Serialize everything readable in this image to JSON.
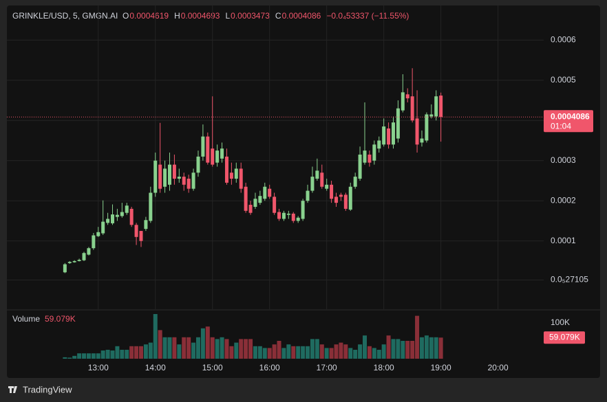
{
  "chart_data": {
    "type": "candlestick",
    "legend": {
      "symbol": "GRINKLE/USD, 5, GMGN.AI",
      "open_label": "O",
      "open": "0.0004619",
      "high_label": "H",
      "high": "0.0004693",
      "low_label": "L",
      "low": "0.0003473",
      "close_label": "C",
      "close": "0.0004086",
      "change": "−0.0₄53337 (−11.55%)"
    },
    "x": [
      "12:25",
      "12:30",
      "12:35",
      "12:40",
      "12:45",
      "12:50",
      "12:55",
      "13:00",
      "13:05",
      "13:10",
      "13:15",
      "13:20",
      "13:25",
      "13:30",
      "13:35",
      "13:40",
      "13:45",
      "13:50",
      "13:55",
      "14:00",
      "14:05",
      "14:10",
      "14:15",
      "14:20",
      "14:25",
      "14:30",
      "14:35",
      "14:40",
      "14:45",
      "14:50",
      "14:55",
      "15:00",
      "15:05",
      "15:10",
      "15:15",
      "15:20",
      "15:25",
      "15:30",
      "15:35",
      "15:40",
      "15:45",
      "15:50",
      "15:55",
      "16:00",
      "16:05",
      "16:10",
      "16:15",
      "16:20",
      "16:25",
      "16:30",
      "16:35",
      "16:40",
      "16:45",
      "16:50",
      "16:55",
      "17:00",
      "17:05",
      "17:10",
      "17:15",
      "17:20",
      "17:25",
      "17:30",
      "17:35",
      "17:40",
      "17:45",
      "17:50",
      "17:55",
      "18:00",
      "18:05",
      "18:10",
      "18:15",
      "18:20",
      "18:25",
      "18:30",
      "18:35",
      "18:40",
      "18:45",
      "18:50",
      "18:55",
      "19:00"
    ],
    "open": [
      2.2e-05,
      4.5e-05,
      4.7e-05,
      5e-05,
      5.2e-05,
      6.6e-05,
      8.2e-05,
      0.000112,
      0.000119,
      0.000145,
      0.000144,
      0.00016,
      0.000162,
      0.00017,
      0.00018,
      0.00014,
      0.000125,
      0.00013,
      0.00015,
      0.00022,
      0.00029,
      0.000235,
      0.00024,
      0.00029,
      0.000255,
      0.00026,
      0.000255,
      0.00023,
      0.00027,
      0.00031,
      0.00036,
      0.00033,
      0.000295,
      0.000305,
      0.00031,
      0.00027,
      0.000255,
      0.00028,
      0.000235,
      0.00019,
      0.000185,
      0.000195,
      0.000205,
      0.00023,
      0.00021,
      0.000172,
      0.000155,
      0.000165,
      0.000168,
      0.00015,
      0.000155,
      0.0002,
      0.000225,
      0.000255,
      0.00027,
      0.00023,
      0.00024,
      0.00021,
      0.000215,
      0.000215,
      0.000178,
      0.000235,
      0.000255,
      0.000295,
      0.000315,
      0.0003,
      0.00033,
      0.00034,
      0.00038,
      0.00034,
      0.000355,
      0.000425,
      0.000465,
      0.00046,
      0.000405,
      0.000345,
      0.00035,
      0.00041,
      0.00041,
      0.0004619
    ],
    "high": [
      4.5e-05,
      5e-05,
      5.2e-05,
      5.6e-05,
      7.3e-05,
      8.5e-05,
      0.00012,
      0.000135,
      0.000201,
      0.00017,
      0.000191,
      0.00018,
      0.000195,
      0.000195,
      0.000185,
      0.000145,
      0.000125,
      0.00016,
      0.000235,
      0.00032,
      0.000394,
      0.0003,
      0.00032,
      0.000315,
      0.00028,
      0.00027,
      0.000265,
      0.00028,
      0.000325,
      0.00039,
      0.00037,
      0.00046,
      0.00034,
      0.000345,
      0.00033,
      0.000295,
      0.000295,
      0.000295,
      0.000245,
      0.0002,
      0.00022,
      0.000225,
      0.000245,
      0.00024,
      0.00022,
      0.00018,
      0.000175,
      0.000175,
      0.000172,
      0.000162,
      0.000205,
      0.00024,
      0.000285,
      0.000305,
      0.00029,
      0.000255,
      0.00025,
      0.00022,
      0.00022,
      0.00022,
      0.000245,
      0.00027,
      0.000335,
      0.000445,
      0.000325,
      0.00035,
      0.00036,
      0.000405,
      0.000395,
      0.00041,
      0.00045,
      0.000515,
      0.00048,
      0.00053,
      0.000475,
      0.000375,
      0.00042,
      0.00044,
      0.000475,
      0.0004693
    ],
    "low": [
      2e-05,
      4.3e-05,
      4.6e-05,
      4.9e-05,
      5e-05,
      6.4e-05,
      7.8e-05,
      0.00011,
      0.000115,
      0.00014,
      0.00014,
      0.00015,
      0.000158,
      0.000165,
      0.000135,
      9e-05,
      8.5e-05,
      0.000125,
      0.000145,
      0.00021,
      0.00022,
      0.00022,
      0.000225,
      0.00024,
      0.000245,
      0.000225,
      0.00022,
      0.000225,
      0.00026,
      0.0003,
      0.00029,
      0.000285,
      0.000285,
      0.000295,
      0.00024,
      0.00024,
      0.000245,
      0.00022,
      0.00017,
      0.000165,
      0.00018,
      0.00019,
      0.0002,
      0.000205,
      0.000165,
      0.00015,
      0.00015,
      0.000155,
      0.000145,
      0.000145,
      0.00015,
      0.000195,
      0.00022,
      0.00025,
      0.00023,
      0.000225,
      0.000195,
      0.000185,
      0.0002,
      0.000175,
      0.000175,
      0.00023,
      0.00025,
      0.00029,
      0.000285,
      0.00029,
      0.00032,
      0.000335,
      0.00033,
      0.00033,
      0.000345,
      0.00042,
      0.000445,
      0.000395,
      0.00032,
      0.000335,
      0.000345,
      0.000405,
      0.0004,
      0.0003473
    ],
    "close": [
      4.2e-05,
      4.8e-05,
      5e-05,
      5.3e-05,
      7e-05,
      8.2e-05,
      0.000114,
      0.000122,
      0.000148,
      0.000155,
      0.000166,
      0.000165,
      0.000172,
      0.000188,
      0.00014,
      0.00011,
      0.0001,
      0.000152,
      0.00022,
      0.0003,
      0.00023,
      0.00028,
      0.00029,
      0.000255,
      0.00026,
      0.00024,
      0.00023,
      0.00027,
      0.00031,
      0.00036,
      0.000295,
      0.00029,
      0.000325,
      0.00033,
      0.000245,
      0.000255,
      0.00028,
      0.00023,
      0.000175,
      0.00017,
      0.000205,
      0.000212,
      0.000235,
      0.00021,
      0.00017,
      0.000155,
      0.00017,
      0.000168,
      0.00015,
      0.000158,
      0.0002,
      0.000225,
      0.00026,
      0.000275,
      0.000235,
      0.00024,
      0.000205,
      0.000195,
      0.00021,
      0.00018,
      0.000235,
      0.00026,
      0.000315,
      0.000325,
      0.000295,
      0.00034,
      0.00035,
      0.000385,
      0.00034,
      0.000395,
      0.00043,
      0.00047,
      0.000455,
      0.0004,
      0.00034,
      0.000355,
      0.000415,
      0.000415,
      0.00046,
      0.0004086
    ],
    "volume": [
      4000,
      3000,
      8000,
      15000,
      15000,
      15000,
      15000,
      15000,
      23000,
      25000,
      23000,
      35000,
      25000,
      25000,
      35000,
      35000,
      35000,
      40000,
      45000,
      125000,
      80000,
      60000,
      60000,
      60000,
      40000,
      60000,
      60000,
      45000,
      60000,
      85000,
      90000,
      60000,
      55000,
      60000,
      55000,
      35000,
      45000,
      55000,
      55000,
      55000,
      35000,
      35000,
      30000,
      30000,
      40000,
      50000,
      30000,
      40000,
      35000,
      35000,
      35000,
      35000,
      55000,
      55000,
      40000,
      30000,
      30000,
      40000,
      45000,
      40000,
      30000,
      25000,
      40000,
      65000,
      35000,
      30000,
      25000,
      40000,
      65000,
      55000,
      55000,
      50000,
      50000,
      50000,
      120000,
      60000,
      65000,
      60000,
      60000,
      59079
    ],
    "up_color": "#89d18e",
    "down_color": "#f0566b",
    "volume_up_color": "#1f6b60",
    "volume_down_color": "#8a2f38",
    "xlim": [
      "11:24",
      "20:48"
    ],
    "xticks": [
      "13:00",
      "14:00",
      "15:00",
      "16:00",
      "17:00",
      "18:00",
      "19:00",
      "20:00"
    ],
    "ylim": [
      -6.99e-05,
      0.0006861
    ],
    "yticks": [
      {
        "value": 2.7105e-06,
        "label": "0.0₅27105"
      },
      0.0001,
      0.0002,
      0.0003,
      0.0004,
      0.0005,
      0.0006
    ],
    "grid": true,
    "price_tag": "0.0004086",
    "countdown": "01:04",
    "volume_title": "Volume",
    "volume_value": "59.079K",
    "volume_lim": [
      0,
      134600
    ],
    "volume_ticks": [
      {
        "value": 100000,
        "label": "100K"
      }
    ],
    "volume_tag": "59.079K",
    "brand": "TradingView"
  }
}
